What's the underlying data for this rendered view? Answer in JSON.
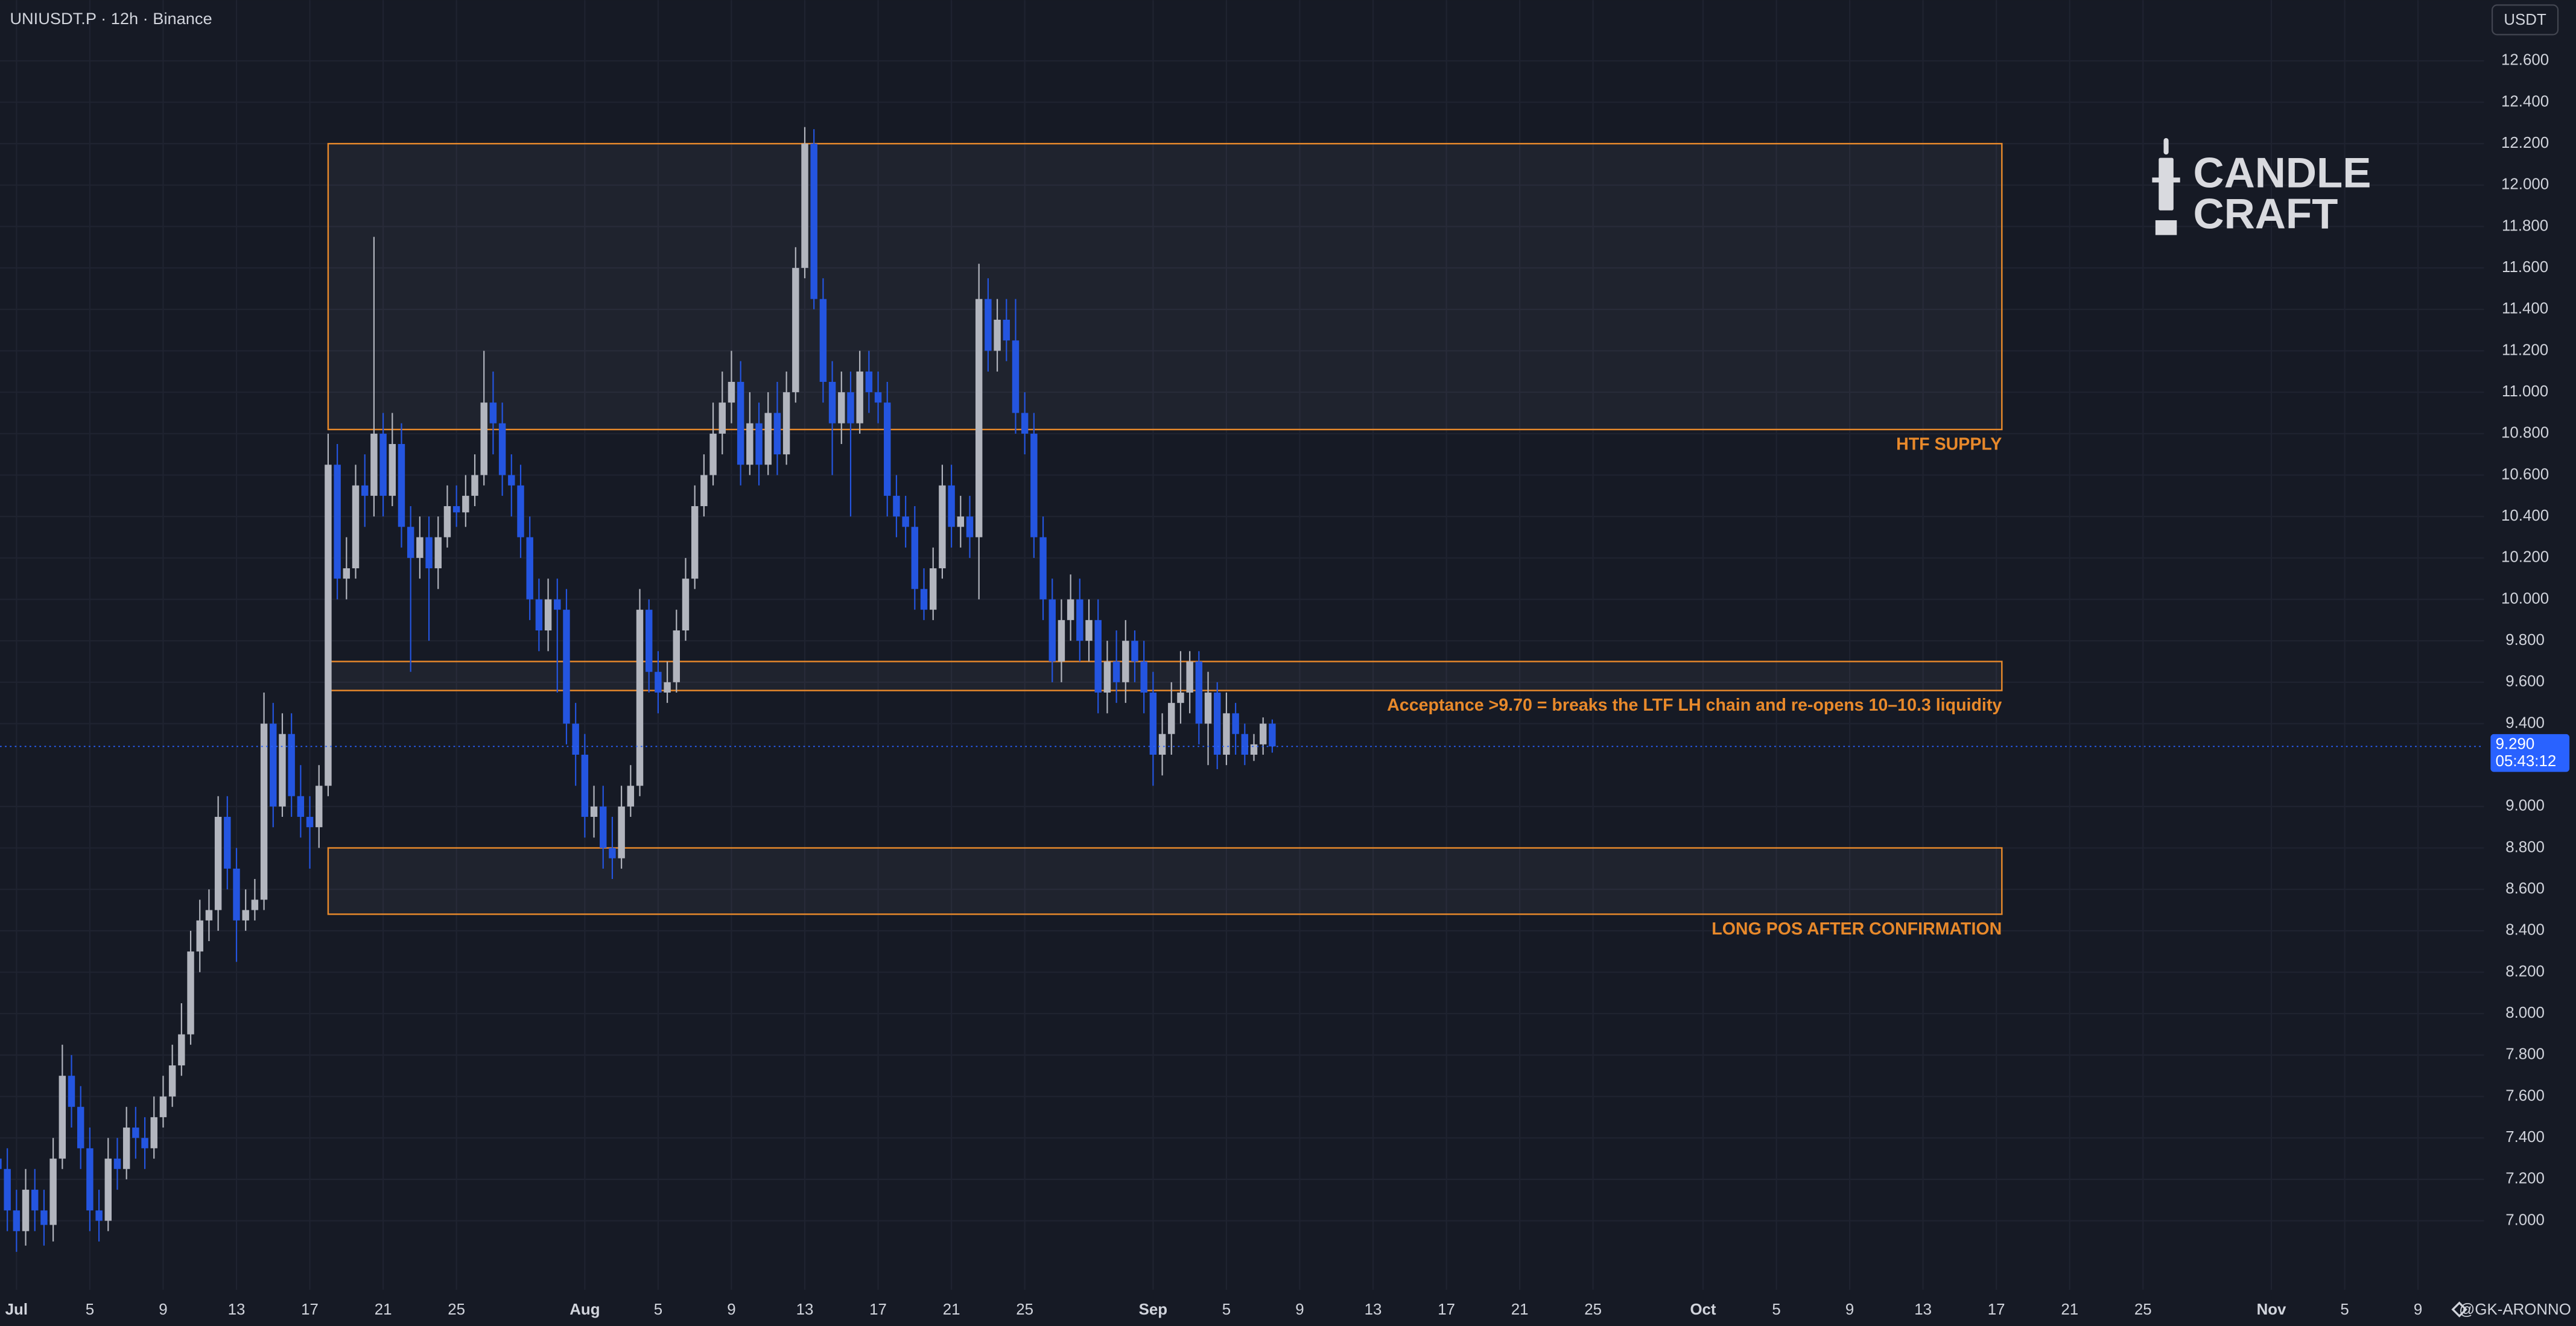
{
  "chart_data": {
    "type": "candlestick",
    "title": "UNIUSDT.P · 12h · Binance",
    "currency": "USDT",
    "logo_lines": [
      "CANDLE",
      "CRAFT"
    ],
    "watermark": "@GK-ARONNO",
    "up_color": "#b2b5be",
    "down_color": "#2455e0",
    "zone_color": "#e8892b",
    "grid": true,
    "xlim": [
      -0.9,
      134.6
    ],
    "ylim": [
      6.667,
      12.893
    ],
    "xticks": [
      {
        "value": 0,
        "label": "Jul"
      },
      {
        "value": 4,
        "label": "5"
      },
      {
        "value": 8,
        "label": "9"
      },
      {
        "value": 12,
        "label": "13"
      },
      {
        "value": 16,
        "label": "17"
      },
      {
        "value": 20,
        "label": "21"
      },
      {
        "value": 24,
        "label": "25"
      },
      {
        "value": 31,
        "label": "Aug"
      },
      {
        "value": 35,
        "label": "5"
      },
      {
        "value": 39,
        "label": "9"
      },
      {
        "value": 43,
        "label": "13"
      },
      {
        "value": 47,
        "label": "17"
      },
      {
        "value": 51,
        "label": "21"
      },
      {
        "value": 55,
        "label": "25"
      },
      {
        "value": 62,
        "label": "Sep"
      },
      {
        "value": 66,
        "label": "5"
      },
      {
        "value": 70,
        "label": "9"
      },
      {
        "value": 74,
        "label": "13"
      },
      {
        "value": 78,
        "label": "17"
      },
      {
        "value": 82,
        "label": "21"
      },
      {
        "value": 86,
        "label": "25"
      },
      {
        "value": 92,
        "label": "Oct"
      },
      {
        "value": 96,
        "label": "5"
      },
      {
        "value": 100,
        "label": "9"
      },
      {
        "value": 104,
        "label": "13"
      },
      {
        "value": 108,
        "label": "17"
      },
      {
        "value": 112,
        "label": "21"
      },
      {
        "value": 116,
        "label": "25"
      },
      {
        "value": 123,
        "label": "Nov"
      },
      {
        "value": 127,
        "label": "5"
      },
      {
        "value": 131,
        "label": "9"
      }
    ],
    "yticks": [
      {
        "value": 7.0,
        "label": "7.000"
      },
      {
        "value": 7.2,
        "label": "7.200"
      },
      {
        "value": 7.4,
        "label": "7.400"
      },
      {
        "value": 7.6,
        "label": "7.600"
      },
      {
        "value": 7.8,
        "label": "7.800"
      },
      {
        "value": 8.0,
        "label": "8.000"
      },
      {
        "value": 8.2,
        "label": "8.200"
      },
      {
        "value": 8.4,
        "label": "8.400"
      },
      {
        "value": 8.6,
        "label": "8.600"
      },
      {
        "value": 8.8,
        "label": "8.800"
      },
      {
        "value": 9.0,
        "label": "9.000"
      },
      {
        "value": 9.4,
        "label": "9.400"
      },
      {
        "value": 9.6,
        "label": "9.600"
      },
      {
        "value": 9.8,
        "label": "9.800"
      },
      {
        "value": 10.0,
        "label": "10.000"
      },
      {
        "value": 10.2,
        "label": "10.200"
      },
      {
        "value": 10.4,
        "label": "10.400"
      },
      {
        "value": 10.6,
        "label": "10.600"
      },
      {
        "value": 10.8,
        "label": "10.800"
      },
      {
        "value": 11.0,
        "label": "11.000"
      },
      {
        "value": 11.2,
        "label": "11.200"
      },
      {
        "value": 11.4,
        "label": "11.400"
      },
      {
        "value": 11.6,
        "label": "11.600"
      },
      {
        "value": 11.8,
        "label": "11.800"
      },
      {
        "value": 12.0,
        "label": "12.000"
      },
      {
        "value": 12.2,
        "label": "12.200"
      },
      {
        "value": 12.4,
        "label": "12.400"
      },
      {
        "value": 12.6,
        "label": "12.600"
      }
    ],
    "last_price": {
      "value": 9.29,
      "label": "9.290"
    },
    "countdown": "05:43:12",
    "zones": [
      {
        "label": "HTF SUPPLY",
        "low": 10.82,
        "high": 12.2,
        "x0": 17,
        "x1": 108.3
      },
      {
        "label": "Acceptance >9.70 = breaks the LTF LH chain and re-opens 10–10.3 liquidity",
        "low": 9.56,
        "high": 9.7,
        "x0": 17,
        "x1": 108.3
      },
      {
        "label": "LONG POS AFTER CONFIRMATION",
        "low": 8.48,
        "high": 8.8,
        "x0": 17,
        "x1": 108.3
      }
    ],
    "x": [
      -1,
      -0.5,
      0,
      0.5,
      1,
      1.5,
      2,
      2.5,
      3,
      3.5,
      4,
      4.5,
      5,
      5.5,
      6,
      6.5,
      7,
      7.5,
      8,
      8.5,
      9,
      9.5,
      10,
      10.5,
      11,
      11.5,
      12,
      12.5,
      13,
      13.5,
      14,
      14.5,
      15,
      15.5,
      16,
      16.5,
      17,
      17.5,
      18,
      18.5,
      19,
      19.5,
      20,
      20.5,
      21,
      21.5,
      22,
      22.5,
      23,
      23.5,
      24,
      24.5,
      25,
      25.5,
      26,
      26.5,
      27,
      27.5,
      28,
      28.5,
      29,
      29.5,
      30,
      30.5,
      31,
      31.5,
      32,
      32.5,
      33,
      33.5,
      34,
      34.5,
      35,
      35.5,
      36,
      36.5,
      37,
      37.5,
      38,
      38.5,
      39,
      39.5,
      40,
      40.5,
      41,
      41.5,
      42,
      42.5,
      43,
      43.5,
      44,
      44.5,
      45,
      45.5,
      46,
      46.5,
      47,
      47.5,
      48,
      48.5,
      49,
      49.5,
      50,
      50.5,
      51,
      51.5,
      52,
      52.5,
      53,
      53.5,
      54,
      54.5,
      55,
      55.5,
      56,
      56.5,
      57,
      57.5,
      58,
      58.5,
      59,
      59.5,
      60,
      60.5,
      61,
      61.5,
      62,
      62.5,
      63,
      63.5,
      64,
      64.5,
      65,
      65.5,
      66,
      66.5,
      67,
      67.5,
      68,
      68.5
    ],
    "open": [
      7.3,
      7.25,
      7.05,
      6.95,
      7.15,
      7.05,
      6.98,
      7.3,
      7.7,
      7.55,
      7.35,
      7.05,
      7.0,
      7.3,
      7.25,
      7.45,
      7.4,
      7.35,
      7.5,
      7.6,
      7.75,
      7.9,
      8.3,
      8.45,
      8.5,
      8.95,
      8.7,
      8.45,
      8.5,
      8.55,
      9.4,
      9.0,
      9.35,
      9.05,
      8.95,
      8.9,
      9.1,
      10.65,
      10.1,
      10.15,
      10.55,
      10.5,
      10.8,
      10.5,
      10.75,
      10.35,
      10.2,
      10.3,
      10.15,
      10.3,
      10.45,
      10.42,
      10.5,
      10.6,
      10.95,
      10.85,
      10.6,
      10.55,
      10.3,
      10.0,
      9.85,
      10.0,
      9.95,
      9.4,
      9.25,
      8.95,
      9.0,
      8.8,
      8.75,
      9.0,
      9.1,
      9.95,
      9.65,
      9.55,
      9.6,
      9.85,
      10.1,
      10.45,
      10.6,
      10.8,
      10.95,
      11.05,
      10.65,
      10.85,
      10.65,
      10.9,
      10.7,
      11.0,
      11.6,
      12.2,
      11.45,
      11.05,
      10.85,
      11.0,
      10.85,
      11.1,
      11.0,
      10.95,
      10.5,
      10.4,
      10.35,
      10.05,
      9.95,
      10.15,
      10.55,
      10.35,
      10.4,
      10.3,
      11.45,
      11.2,
      11.35,
      11.25,
      10.9,
      10.8,
      10.3,
      10.0,
      9.7,
      9.9,
      10.0,
      9.8,
      9.9,
      9.55,
      9.7,
      9.6,
      9.8,
      9.7,
      9.55,
      9.25,
      9.35,
      9.5,
      9.55,
      9.7,
      9.4,
      9.55,
      9.25,
      9.45,
      9.35,
      9.25,
      9.3,
      9.4
    ],
    "high": [
      7.4,
      7.35,
      7.15,
      7.25,
      7.25,
      7.15,
      7.4,
      7.85,
      7.8,
      7.65,
      7.45,
      7.15,
      7.4,
      7.4,
      7.55,
      7.55,
      7.5,
      7.6,
      7.7,
      7.85,
      8.05,
      8.4,
      8.55,
      8.6,
      9.05,
      9.05,
      8.8,
      8.6,
      8.65,
      9.55,
      9.5,
      9.45,
      9.45,
      9.2,
      9.05,
      9.2,
      10.8,
      10.75,
      10.3,
      10.65,
      10.7,
      11.75,
      10.9,
      10.9,
      10.85,
      10.45,
      10.4,
      10.4,
      10.4,
      10.55,
      10.55,
      10.6,
      10.7,
      11.2,
      11.1,
      10.95,
      10.7,
      10.65,
      10.4,
      10.1,
      10.1,
      10.1,
      10.05,
      9.5,
      9.35,
      9.1,
      9.1,
      8.95,
      9.1,
      9.2,
      10.05,
      10.0,
      9.75,
      9.7,
      9.95,
      10.2,
      10.55,
      10.7,
      10.95,
      11.1,
      11.2,
      11.15,
      11.0,
      10.95,
      11.0,
      11.05,
      11.1,
      11.7,
      12.28,
      12.27,
      11.55,
      11.15,
      11.1,
      11.1,
      11.2,
      11.2,
      11.1,
      11.05,
      10.6,
      10.5,
      10.45,
      10.15,
      10.25,
      10.65,
      10.65,
      10.5,
      10.5,
      11.62,
      11.55,
      11.45,
      11.45,
      11.45,
      11.0,
      10.9,
      10.4,
      10.1,
      10.0,
      10.12,
      10.1,
      10.0,
      10.0,
      9.8,
      9.85,
      9.9,
      9.85,
      9.8,
      9.65,
      9.45,
      9.6,
      9.75,
      9.75,
      9.75,
      9.65,
      9.6,
      9.55,
      9.5,
      9.4,
      9.35,
      9.43,
      9.42
    ],
    "low": [
      7.15,
      6.95,
      6.85,
      6.88,
      6.95,
      6.88,
      6.9,
      7.25,
      7.45,
      7.25,
      6.95,
      6.9,
      6.95,
      7.15,
      7.2,
      7.3,
      7.25,
      7.3,
      7.45,
      7.55,
      7.7,
      7.85,
      8.2,
      8.35,
      8.4,
      8.6,
      8.25,
      8.4,
      8.45,
      8.5,
      8.9,
      8.95,
      8.95,
      8.85,
      8.7,
      8.8,
      9.05,
      10.0,
      10.0,
      10.1,
      10.35,
      10.4,
      10.4,
      10.45,
      10.25,
      9.65,
      10.1,
      9.8,
      10.05,
      10.25,
      10.35,
      10.35,
      10.45,
      10.55,
      10.7,
      10.5,
      10.4,
      10.2,
      9.9,
      9.75,
      9.75,
      9.55,
      9.3,
      9.1,
      8.85,
      8.85,
      8.7,
      8.65,
      8.7,
      8.95,
      9.05,
      9.55,
      9.45,
      9.5,
      9.55,
      9.8,
      10.05,
      10.4,
      10.55,
      10.7,
      10.85,
      10.55,
      10.6,
      10.55,
      10.6,
      10.6,
      10.65,
      10.95,
      11.55,
      11.4,
      10.95,
      10.6,
      10.75,
      10.4,
      10.8,
      10.9,
      10.85,
      10.4,
      10.3,
      10.25,
      9.95,
      9.9,
      9.9,
      10.1,
      10.25,
      10.25,
      10.2,
      10.0,
      11.1,
      11.1,
      11.15,
      10.8,
      10.7,
      10.2,
      9.9,
      9.6,
      9.6,
      9.8,
      9.7,
      9.7,
      9.45,
      9.45,
      9.5,
      9.5,
      9.6,
      9.45,
      9.1,
      9.15,
      9.25,
      9.4,
      9.45,
      9.3,
      9.2,
      9.18,
      9.2,
      9.25,
      9.2,
      9.22,
      9.25,
      9.26
    ],
    "close": [
      7.25,
      7.05,
      6.95,
      7.15,
      7.05,
      6.98,
      7.3,
      7.7,
      7.55,
      7.35,
      7.05,
      7.0,
      7.3,
      7.25,
      7.45,
      7.4,
      7.35,
      7.5,
      7.6,
      7.75,
      7.9,
      8.3,
      8.45,
      8.5,
      8.95,
      8.7,
      8.45,
      8.5,
      8.55,
      9.4,
      9.0,
      9.35,
      9.05,
      8.95,
      8.9,
      9.1,
      10.65,
      10.1,
      10.15,
      10.55,
      10.5,
      10.8,
      10.5,
      10.75,
      10.35,
      10.2,
      10.3,
      10.15,
      10.3,
      10.45,
      10.42,
      10.5,
      10.6,
      10.95,
      10.85,
      10.6,
      10.55,
      10.3,
      10.0,
      9.85,
      10.0,
      9.95,
      9.4,
      9.25,
      8.95,
      9.0,
      8.8,
      8.75,
      9.0,
      9.1,
      9.95,
      9.65,
      9.55,
      9.6,
      9.85,
      10.1,
      10.45,
      10.6,
      10.8,
      10.95,
      11.05,
      10.65,
      10.85,
      10.65,
      10.9,
      10.7,
      11.0,
      11.6,
      12.2,
      11.45,
      11.05,
      10.85,
      11.0,
      10.85,
      11.1,
      11.0,
      10.95,
      10.5,
      10.4,
      10.35,
      10.05,
      9.95,
      10.15,
      10.55,
      10.35,
      10.4,
      10.3,
      11.45,
      11.2,
      11.35,
      11.25,
      10.9,
      10.8,
      10.3,
      10.0,
      9.7,
      9.9,
      10.0,
      9.8,
      9.9,
      9.55,
      9.7,
      9.6,
      9.8,
      9.7,
      9.55,
      9.25,
      9.35,
      9.5,
      9.55,
      9.7,
      9.4,
      9.55,
      9.25,
      9.45,
      9.35,
      9.25,
      9.3,
      9.4,
      9.29
    ]
  }
}
